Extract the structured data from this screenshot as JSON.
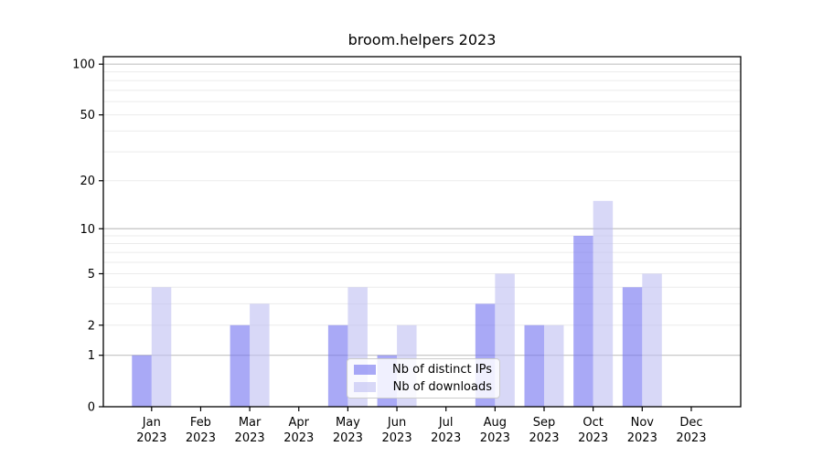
{
  "chart_data": {
    "type": "bar",
    "title": "broom.helpers 2023",
    "categories": [
      "Jan",
      "Feb",
      "Mar",
      "Apr",
      "May",
      "Jun",
      "Jul",
      "Aug",
      "Sep",
      "Oct",
      "Nov",
      "Dec"
    ],
    "x_year_label": "2023",
    "series": [
      {
        "name": "Nb of distinct IPs",
        "color": "rgba(112,112,240,0.6)",
        "values": [
          1,
          0,
          2,
          0,
          2,
          1,
          0,
          3,
          2,
          9,
          4,
          0
        ]
      },
      {
        "name": "Nb of downloads",
        "color": "rgba(190,190,242,0.6)",
        "values": [
          4,
          0,
          3,
          0,
          4,
          2,
          0,
          5,
          2,
          15,
          5,
          0
        ]
      }
    ],
    "scale": "log1p",
    "ylim": [
      0,
      111
    ],
    "y_ticks": [
      "0",
      "1",
      "2",
      "5",
      "10",
      "20",
      "50",
      "100"
    ],
    "y_tick_values": [
      0,
      1,
      2,
      5,
      10,
      20,
      50,
      100
    ],
    "major_grid_values": [
      1,
      10,
      100
    ],
    "minor_grid_values": [
      2,
      3,
      4,
      5,
      6,
      7,
      8,
      9,
      20,
      30,
      40,
      50,
      60,
      70,
      80,
      90
    ],
    "grid": "both",
    "legend_position": "inside lower center",
    "colors": {
      "axis": "#000000",
      "text": "#000000",
      "major_grid": "#c3c3c3",
      "minor_grid": "#ebebeb"
    }
  }
}
